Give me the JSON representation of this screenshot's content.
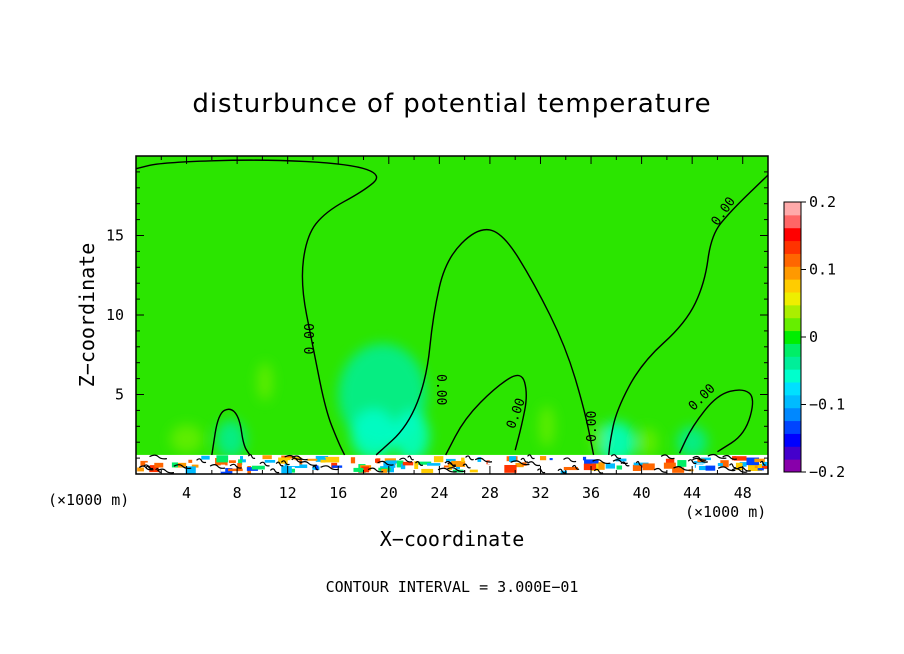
{
  "chart_data": {
    "type": "heatmap",
    "title": "disturbunce of potential temperature",
    "xlabel": "X−coordinate",
    "ylabel": "Z−coordinate",
    "x_unit_left": "(×1000 m)",
    "x_unit_right": "(×1000 m)",
    "footer": "CONTOUR INTERVAL = 3.000E−01",
    "xlim": [
      0,
      50
    ],
    "ylim": [
      0,
      20
    ],
    "x_ticks": [
      4,
      8,
      12,
      16,
      20,
      24,
      28,
      32,
      36,
      40,
      44,
      48
    ],
    "x_tick_labels": [
      "4",
      "8",
      "12",
      "16",
      "20",
      "24",
      "28",
      "32",
      "36",
      "40",
      "44",
      "48"
    ],
    "y_ticks": [
      5,
      10,
      15
    ],
    "y_tick_labels": [
      "5",
      "10",
      "15"
    ],
    "colorbar": {
      "min": -0.2,
      "max": 0.2,
      "tick_values": [
        0.2,
        0.1,
        0,
        -0.1,
        -0.2
      ],
      "tick_labels": [
        "0.2",
        "0.1",
        "0",
        "−0.1",
        "−0.2"
      ],
      "colors": [
        "#8800aa",
        "#4400cc",
        "#0000ff",
        "#0044ff",
        "#0088ff",
        "#00bbff",
        "#00e0ff",
        "#00ffcc",
        "#00ee99",
        "#00ee66",
        "#00ee00",
        "#66ee00",
        "#aaee00",
        "#eeee00",
        "#ffcc00",
        "#ff9900",
        "#ff6600",
        "#ff3300",
        "#ff0000",
        "#ff6666",
        "#ffaaaa"
      ]
    },
    "background_color": "#2be500",
    "contour_label": "0.00",
    "contour_zero_lines": [
      {
        "points": [
          [
            0,
            19.2
          ],
          [
            2,
            19.6
          ],
          [
            10,
            19.8
          ],
          [
            17,
            19.5
          ],
          [
            19.5,
            18.8
          ],
          [
            18,
            17.8
          ],
          [
            15,
            16.5
          ],
          [
            13.5,
            15
          ],
          [
            13,
            12
          ],
          [
            14,
            8
          ],
          [
            15,
            4
          ],
          [
            16,
            2
          ],
          [
            16.5,
            1.2
          ]
        ]
      },
      {
        "points": [
          [
            19,
            1.2
          ],
          [
            21.5,
            3
          ],
          [
            23,
            6
          ],
          [
            23.5,
            10
          ],
          [
            24.5,
            13.5
          ],
          [
            27,
            15.5
          ],
          [
            29,
            15.2
          ],
          [
            31.5,
            12
          ],
          [
            34,
            8
          ],
          [
            35.5,
            4
          ],
          [
            36.2,
            1.2
          ]
        ]
      },
      {
        "points": [
          [
            50,
            18.8
          ],
          [
            47,
            16.5
          ],
          [
            45.5,
            15
          ],
          [
            45,
            12
          ],
          [
            43.5,
            9.5
          ],
          [
            40,
            7
          ],
          [
            38,
            4
          ],
          [
            37.5,
            2
          ],
          [
            37.4,
            1.2
          ]
        ]
      },
      {
        "points": [
          [
            24.5,
            1.2
          ],
          [
            26,
            3.5
          ],
          [
            28.5,
            5.5
          ],
          [
            30.5,
            6.5
          ],
          [
            31,
            5
          ],
          [
            30.5,
            3
          ],
          [
            30,
            1.5
          ]
        ]
      },
      {
        "points": [
          [
            6,
            1.2
          ],
          [
            6.5,
            3.8
          ],
          [
            7.5,
            4.2
          ],
          [
            8.2,
            3.5
          ],
          [
            8.5,
            1.8
          ],
          [
            9,
            1.2
          ]
        ]
      },
      {
        "points": [
          [
            43,
            1.3
          ],
          [
            44,
            3
          ],
          [
            46,
            5
          ],
          [
            48,
            5.4
          ],
          [
            49,
            4.8
          ],
          [
            48.2,
            2.5
          ],
          [
            46,
            1.4
          ]
        ]
      }
    ],
    "shading_regions": [
      {
        "x": 19.5,
        "y": 5,
        "rx": 3.5,
        "ry": 3.2,
        "value": -0.03
      },
      {
        "x": 18.8,
        "y": 2.5,
        "rx": 1.8,
        "ry": 1.6,
        "value": -0.06
      },
      {
        "x": 21.8,
        "y": 2.4,
        "rx": 1.4,
        "ry": 1.6,
        "value": -0.06
      },
      {
        "x": 7.5,
        "y": 2.2,
        "rx": 1.2,
        "ry": 1.2,
        "value": -0.04
      },
      {
        "x": 38,
        "y": 2,
        "rx": 1.5,
        "ry": 1.3,
        "value": -0.05
      },
      {
        "x": 44,
        "y": 2,
        "rx": 1.2,
        "ry": 1,
        "value": -0.04
      },
      {
        "x": 10.2,
        "y": 5.8,
        "rx": 0.6,
        "ry": 1.2,
        "value": 0.02
      },
      {
        "x": 32.5,
        "y": 3,
        "rx": 0.6,
        "ry": 1.3,
        "value": 0.02
      },
      {
        "x": 4,
        "y": 2.2,
        "rx": 1.3,
        "ry": 0.9,
        "value": 0.02
      },
      {
        "x": 36.5,
        "y": 2.2,
        "rx": 0.5,
        "ry": 0.8,
        "value": 0.02
      },
      {
        "x": 40.5,
        "y": 2,
        "rx": 0.8,
        "ry": 0.9,
        "value": 0.02
      }
    ]
  }
}
